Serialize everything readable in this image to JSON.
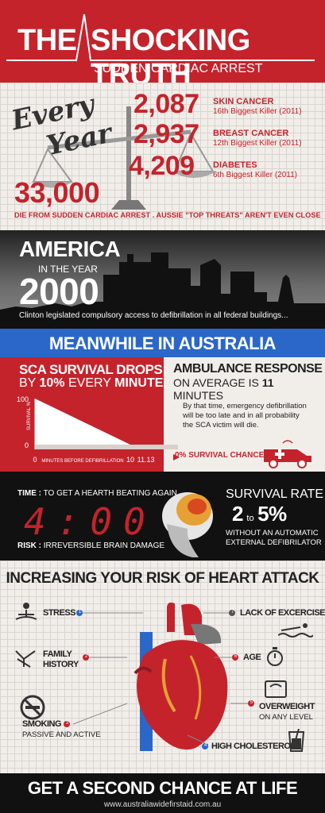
{
  "header": {
    "title_a": "THE",
    "title_b": "SHOCKING TRUTH",
    "subtitle": "SUDDEN CARDIAC ARREST"
  },
  "every_year": {
    "script_a": "Every",
    "script_b": "Year",
    "stats": [
      {
        "number": "2,087",
        "label": "SKIN CANCER",
        "rank": "16th Biggest Killer (2011)"
      },
      {
        "number": "2,937",
        "label": "BREAST CANCER",
        "rank": "12th Biggest Killer (2011)"
      },
      {
        "number": "4,209",
        "label": "DIABETES",
        "rank": "6th Biggest Killer (2011)"
      }
    ],
    "big_number": "33,000",
    "caption": "DIE FROM SUDDEN CARDIAC ARREST . AUSSIE \"TOP THREATS\" AREN'T EVEN CLOSE"
  },
  "america": {
    "title": "AMERICA",
    "in_year": "IN THE YEAR",
    "year": "2000",
    "caption": "Clinton legislated compulsory access to defibrillation in all federal buildings..."
  },
  "australia": {
    "banner": "MEANWHILE IN AUSTRALIA"
  },
  "sca": {
    "title_1": "SCA SURVIVAL DROPS",
    "title_2a": "BY ",
    "title_2b": "10%",
    "title_2c": " EVERY ",
    "title_2d": "MINUTE",
    "y_axis_label": "SURVIVAL %",
    "x_axis_label": "MINUTES BEFORE DEFIBRILLATION",
    "chart_data": {
      "type": "area",
      "x": [
        0,
        10
      ],
      "y": [
        100,
        0
      ],
      "x_ticks": [
        "0",
        "10",
        "11.13"
      ],
      "y_ticks": [
        "100",
        "0"
      ],
      "xlabel": "MINUTES BEFORE DEFIBRILLATION",
      "ylabel": "SURVIVAL %"
    }
  },
  "ambulance": {
    "title_1": "AMBULANCE RESPONSE",
    "title_2a": "ON AVERAGE IS ",
    "title_2b": "11",
    "title_2c": " MINUTES",
    "body": "By that time, emergency defibrillation will be too late and in all probability the SCA victim will die.",
    "zero_survival": "0% SURVIVAL CHANCE"
  },
  "time_risk": {
    "time_label": "TIME :",
    "time_text": " TO GET A HEARTH BEATING AGAIN",
    "clock": "4:00",
    "risk_label": "RISK :",
    "risk_text": " IRREVERSIBLE BRAIN DAMAGE",
    "survival_title": "SURVIVAL RATE",
    "survival_a": "2",
    "survival_to": "to",
    "survival_b": "5%",
    "without_1": "WITHOUT AN AUTOMATIC",
    "without_2": "EXTERNAL DEFIBRILATOR"
  },
  "risk": {
    "title": "INCREASING YOUR RISK OF HEART ATTACK",
    "factors": [
      {
        "num": "1",
        "label": "STRESS",
        "sub": ""
      },
      {
        "num": "2",
        "label": "FAMILY",
        "sub": "HISTORY"
      },
      {
        "num": "3",
        "label": "SMOKING",
        "sub": "PASSIVE AND ACTIVE"
      },
      {
        "num": "4",
        "label": "HIGH CHOLESTEROL",
        "sub": ""
      },
      {
        "num": "5",
        "label": "OVERWEIGHT",
        "sub": "ON ANY LEVEL"
      },
      {
        "num": "6",
        "label": "AGE",
        "sub": ""
      },
      {
        "num": "7",
        "label": "LACK OF EXCERCISE",
        "sub": ""
      }
    ]
  },
  "footer": {
    "title": "GET A SECOND CHANCE AT LIFE",
    "url": "www.australiawidefirstaid.com.au"
  },
  "colors": {
    "red": "#c4232c",
    "blue": "#2a67c8",
    "dark": "#1a1a1a",
    "paper": "#f1eeea"
  }
}
